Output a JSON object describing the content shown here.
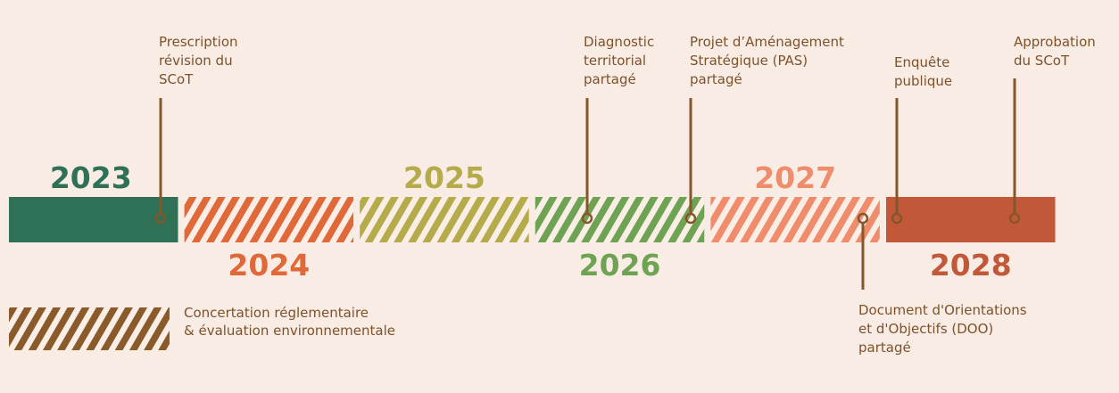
{
  "periods": [
    {
      "year": "2023",
      "color": "#2e7157",
      "striped": false
    },
    {
      "year": "2024",
      "color": "#e0693a",
      "striped": true
    },
    {
      "year": "2025",
      "color": "#b5ab4b",
      "striped": true
    },
    {
      "year": "2026",
      "color": "#6fa354",
      "striped": true
    },
    {
      "year": "2027",
      "color": "#ee8c6c",
      "striped": true
    },
    {
      "year": "2028",
      "color": "#c2583a",
      "striped": false
    }
  ],
  "milestones": [
    {
      "label": [
        "Prescription",
        "révision du",
        "SCoT"
      ]
    },
    {
      "label": [
        "Diagnostic",
        "territorial",
        "partagé"
      ]
    },
    {
      "label": [
        "Projet d’Aménagement",
        "Stratégique (PAS)",
        "partagé"
      ]
    },
    {
      "label": [
        "Document d'Orientations",
        "et d'Objectifs (DOO)",
        "partagé"
      ]
    },
    {
      "label": [
        "Enquête",
        "publique"
      ]
    },
    {
      "label": [
        "Approbation",
        "du SCoT"
      ]
    }
  ],
  "legend": {
    "color": "#8b5a2b",
    "label": [
      "Concertation réglementaire",
      "& évaluation environnementale"
    ]
  }
}
